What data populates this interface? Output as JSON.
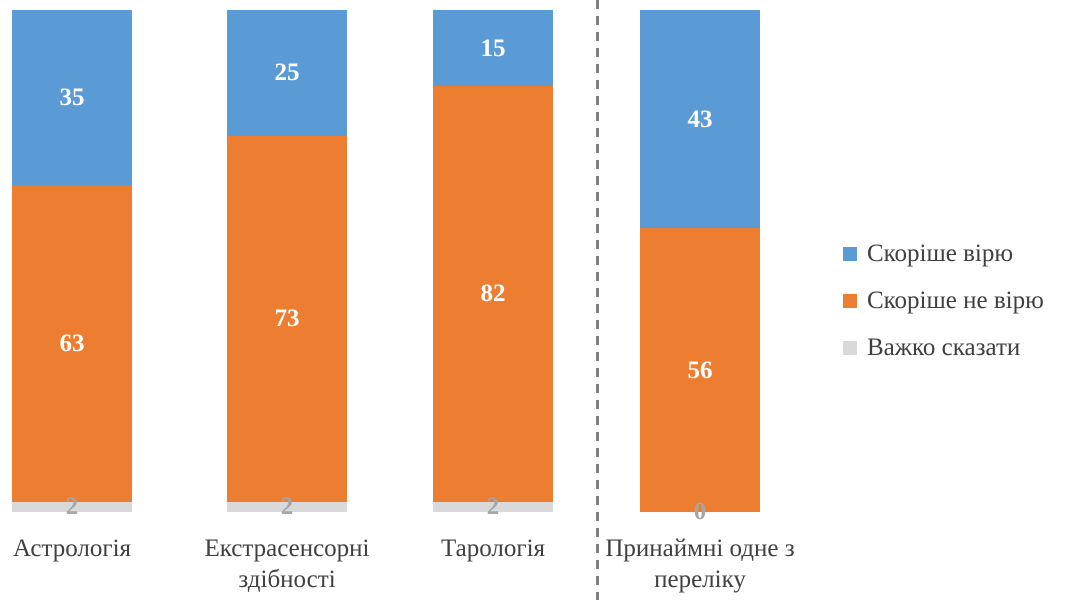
{
  "chart_data": {
    "type": "bar",
    "stacked": true,
    "orientation": "vertical",
    "title": "",
    "xlabel": "",
    "ylabel": "",
    "grid": false,
    "categories": [
      "Астрологія",
      "Екстрасенсорні здібності",
      "Тарологія",
      "Принаймні одне з переліку"
    ],
    "series": [
      {
        "name": "Скоріше вірю",
        "color": "#5B9BD5",
        "values": [
          35,
          25,
          15,
          43
        ]
      },
      {
        "name": "Скоріше не вірю",
        "color": "#ED7D31",
        "values": [
          63,
          73,
          82,
          56
        ]
      },
      {
        "name": "Важко сказати",
        "color": "#D9D9D9",
        "values": [
          2,
          2,
          2,
          0
        ]
      }
    ],
    "value_labels": {
      "shown": true,
      "color_on_colored_segments": "#FFFFFF",
      "color_on_gray_segment": "#A6A6A6"
    },
    "legend": {
      "position": "right",
      "entries": [
        "Скоріше вірю",
        "Скоріше не вірю",
        "Важко сказати"
      ]
    },
    "separator": {
      "type": "dashed-vertical-line",
      "after_category_index": 2,
      "color": "#7f7f7f"
    }
  }
}
